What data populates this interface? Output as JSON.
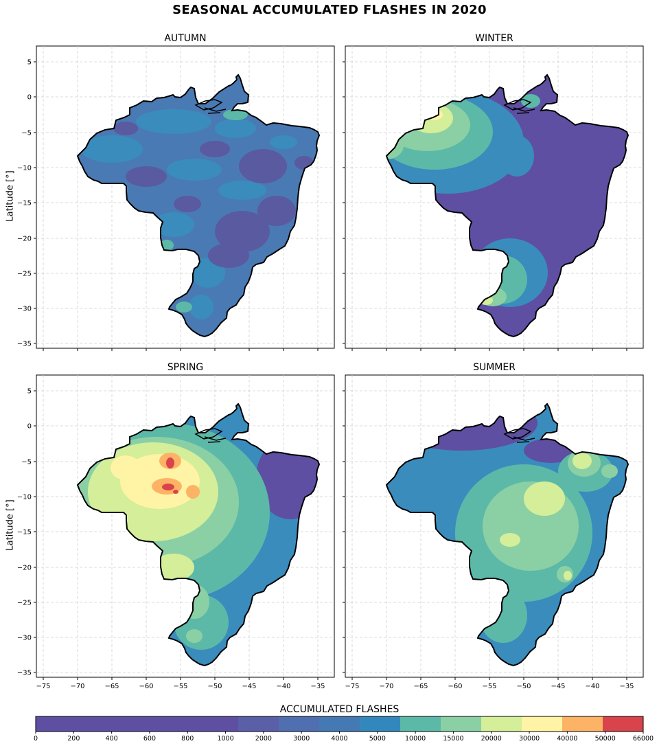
{
  "title": "SEASONAL ACCUMULATED FLASHES IN 2020",
  "panels": [
    {
      "title": "AUTUMN"
    },
    {
      "title": "WINTER"
    },
    {
      "title": "SPRING"
    },
    {
      "title": "SUMMER"
    }
  ],
  "ylabel": "Latitude [°]",
  "x_ticks": [
    "−75",
    "−70",
    "−65",
    "−60",
    "−55",
    "−50",
    "−45",
    "−40",
    "−35"
  ],
  "y_ticks": [
    "5",
    "0",
    "−5",
    "−10",
    "−15",
    "−20",
    "−25",
    "−30",
    "−35"
  ],
  "colorbar": {
    "title": "ACCUMULATED FLASHES",
    "ticks": [
      "0",
      "200",
      "400",
      "600",
      "800",
      "1000",
      "2000",
      "3000",
      "4000",
      "5000",
      "10000",
      "15000",
      "20000",
      "30000",
      "40000",
      "50000",
      "66000"
    ],
    "colors": [
      "#5e4fa2",
      "#5e4fa2",
      "#5e4fa2",
      "#5e4fa2",
      "#5e4fa2",
      "#5a5fa8",
      "#4f6fb0",
      "#4579b3",
      "#3288bd",
      "#5cb9a8",
      "#8bd0a4",
      "#d4ee9a",
      "#fff3a5",
      "#fdb365",
      "#d8434c"
    ]
  }
}
